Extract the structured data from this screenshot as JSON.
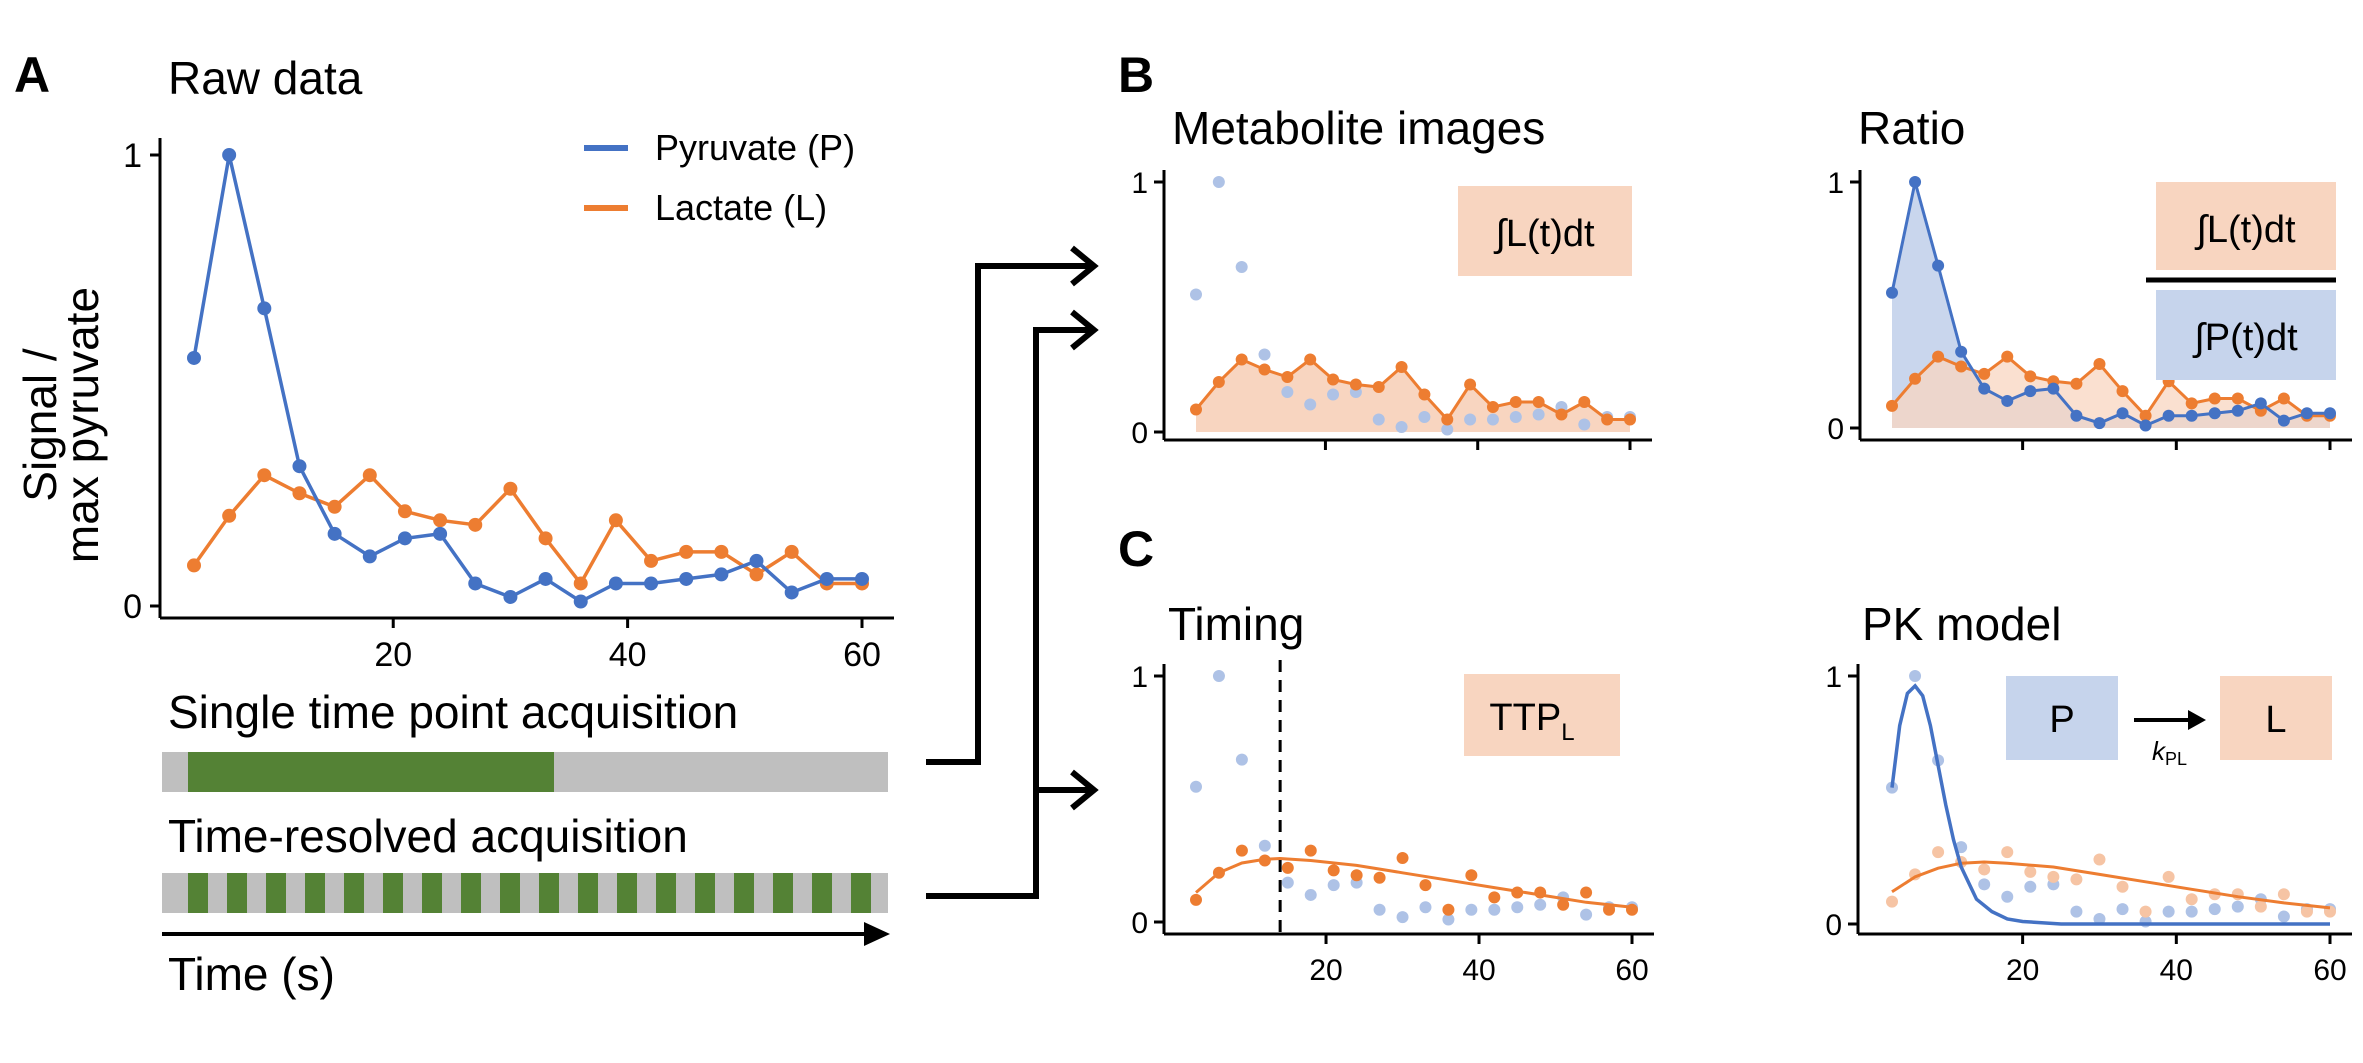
{
  "figure": {
    "colors": {
      "pyruvate": "#4472c4",
      "lactate": "#ed7d31",
      "pyruvate_light": "#aec2e6",
      "lactate_light": "#f6c4a4",
      "lactate_box": "#f8d5c0",
      "pyruvate_box": "#c6d4ec",
      "bar_green": "#548235",
      "bar_gray": "#bfbfbf"
    },
    "panels": {
      "A": {
        "letter": "A",
        "title": "Raw data",
        "ylabel_line1": "Signal /",
        "ylabel_line2": "max pyruvate",
        "legend": [
          "Pyruvate (P)",
          "Lactate (L)"
        ],
        "acq_single": "Single time point acquisition",
        "acq_resolved": "Time-resolved acquisition",
        "time_label": "Time (s)"
      },
      "B": {
        "letter": "B",
        "metab_title": "Metabolite images",
        "metab_box": "∫L(t)dt",
        "ratio_title": "Ratio",
        "ratio_box_num": "∫L(t)dt",
        "ratio_box_den": "∫P(t)dt"
      },
      "C": {
        "letter": "C",
        "timing_title": "Timing",
        "timing_box": "TTP",
        "timing_box_sub": "L",
        "pk_title": "PK model",
        "pk_box_p": "P",
        "pk_box_l": "L",
        "pk_rate": "k",
        "pk_rate_sub": "PL"
      }
    }
  },
  "chart_data": [
    {
      "panel": "A",
      "type": "line",
      "title": "Raw data",
      "xlabel": "",
      "ylabel": "Signal / max pyruvate",
      "xlim": [
        0,
        62
      ],
      "ylim": [
        0,
        1
      ],
      "xticks": [
        20,
        40,
        60
      ],
      "yticks": [
        0,
        1
      ],
      "x": [
        3,
        6,
        9,
        12,
        15,
        18,
        21,
        24,
        27,
        30,
        33,
        36,
        39,
        42,
        45,
        48,
        51,
        54,
        57,
        60
      ],
      "series": [
        {
          "name": "Pyruvate (P)",
          "values": [
            0.55,
            1.0,
            0.66,
            0.31,
            0.16,
            0.11,
            0.15,
            0.16,
            0.05,
            0.02,
            0.06,
            0.01,
            0.05,
            0.05,
            0.06,
            0.07,
            0.1,
            0.03,
            0.06,
            0.06
          ]
        },
        {
          "name": "Lactate (L)",
          "values": [
            0.09,
            0.2,
            0.29,
            0.25,
            0.22,
            0.29,
            0.21,
            0.19,
            0.18,
            0.26,
            0.15,
            0.05,
            0.19,
            0.1,
            0.12,
            0.12,
            0.07,
            0.12,
            0.05,
            0.05
          ]
        }
      ],
      "legend_position": "top-right"
    },
    {
      "panel": "B-metabolite",
      "type": "area",
      "title": "Metabolite images",
      "xlim": [
        0,
        62
      ],
      "ylim": [
        0,
        1
      ],
      "yticks": [
        0,
        1
      ],
      "x": [
        3,
        6,
        9,
        12,
        15,
        18,
        21,
        24,
        27,
        30,
        33,
        36,
        39,
        42,
        45,
        48,
        51,
        54,
        57,
        60
      ],
      "series": [
        {
          "name": "Pyruvate (P)",
          "values": [
            0.55,
            1.0,
            0.66,
            0.31,
            0.16,
            0.11,
            0.15,
            0.16,
            0.05,
            0.02,
            0.06,
            0.01,
            0.05,
            0.05,
            0.06,
            0.07,
            0.1,
            0.03,
            0.06,
            0.06
          ]
        },
        {
          "name": "Lactate (L)",
          "values": [
            0.09,
            0.2,
            0.29,
            0.25,
            0.22,
            0.29,
            0.21,
            0.19,
            0.18,
            0.26,
            0.15,
            0.05,
            0.19,
            0.1,
            0.12,
            0.12,
            0.07,
            0.12,
            0.05,
            0.05
          ]
        }
      ]
    },
    {
      "panel": "B-ratio",
      "type": "area",
      "title": "Ratio",
      "xlim": [
        0,
        62
      ],
      "ylim": [
        0,
        1
      ],
      "yticks": [
        0,
        1
      ],
      "x": [
        3,
        6,
        9,
        12,
        15,
        18,
        21,
        24,
        27,
        30,
        33,
        36,
        39,
        42,
        45,
        48,
        51,
        54,
        57,
        60
      ],
      "series": [
        {
          "name": "Pyruvate (P)",
          "values": [
            0.55,
            1.0,
            0.66,
            0.31,
            0.16,
            0.11,
            0.15,
            0.16,
            0.05,
            0.02,
            0.06,
            0.01,
            0.05,
            0.05,
            0.06,
            0.07,
            0.1,
            0.03,
            0.06,
            0.06
          ]
        },
        {
          "name": "Lactate (L)",
          "values": [
            0.09,
            0.2,
            0.29,
            0.25,
            0.22,
            0.29,
            0.21,
            0.19,
            0.18,
            0.26,
            0.15,
            0.05,
            0.19,
            0.1,
            0.12,
            0.12,
            0.07,
            0.12,
            0.05,
            0.05
          ]
        }
      ]
    },
    {
      "panel": "C-timing",
      "type": "scatter",
      "title": "Timing",
      "xlim": [
        0,
        62
      ],
      "ylim": [
        0,
        1
      ],
      "xticks": [
        20,
        40,
        60
      ],
      "yticks": [
        0,
        1
      ],
      "ttp_x": 14,
      "lactate_fit": {
        "x": [
          3,
          6,
          9,
          12,
          14,
          18,
          24,
          30,
          36,
          42,
          48,
          54,
          60
        ],
        "values": [
          0.12,
          0.2,
          0.24,
          0.255,
          0.258,
          0.25,
          0.23,
          0.2,
          0.17,
          0.14,
          0.11,
          0.08,
          0.06
        ]
      }
    },
    {
      "panel": "C-pk",
      "type": "scatter",
      "title": "PK model",
      "xlim": [
        0,
        62
      ],
      "ylim": [
        0,
        1
      ],
      "xticks": [
        20,
        40,
        60
      ],
      "yticks": [
        0,
        1
      ],
      "pyruvate_fit": {
        "x": [
          3,
          4,
          5,
          6,
          7,
          8,
          9,
          10,
          11,
          12,
          14,
          16,
          18,
          20,
          25,
          30,
          40,
          50,
          60
        ],
        "values": [
          0.55,
          0.8,
          0.93,
          0.96,
          0.92,
          0.8,
          0.64,
          0.48,
          0.34,
          0.23,
          0.1,
          0.05,
          0.02,
          0.01,
          0.0,
          0.0,
          0.0,
          0.0,
          0.0
        ]
      },
      "lactate_fit": {
        "x": [
          3,
          6,
          9,
          12,
          15,
          18,
          24,
          30,
          36,
          42,
          48,
          54,
          60
        ],
        "values": [
          0.13,
          0.19,
          0.225,
          0.245,
          0.25,
          0.245,
          0.23,
          0.2,
          0.17,
          0.14,
          0.11,
          0.085,
          0.065
        ]
      }
    }
  ]
}
